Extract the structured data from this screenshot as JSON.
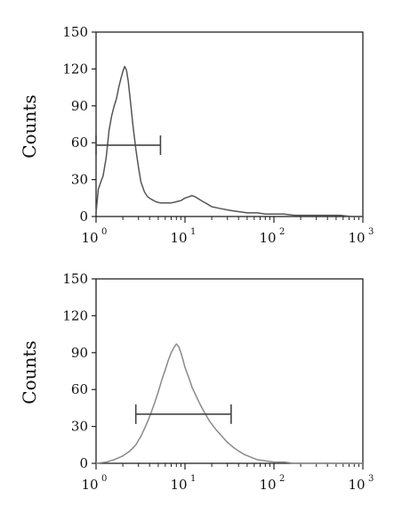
{
  "chart_data": [
    {
      "type": "line",
      "ylabel": "Counts",
      "xscale": "log",
      "xlim": [
        1,
        1000
      ],
      "ylim": [
        0,
        150
      ],
      "y_ticks": [
        "0",
        "30",
        "60",
        "90",
        "120",
        "150"
      ],
      "x_ticks": [
        {
          "base": "10",
          "exp": "0"
        },
        {
          "base": "10",
          "exp": "1"
        },
        {
          "base": "10",
          "exp": "2"
        },
        {
          "base": "10",
          "exp": "3"
        }
      ],
      "line_color": "#555555",
      "series": [
        {
          "x": [
            1.0,
            1.06,
            1.13,
            1.2,
            1.3,
            1.4,
            1.5,
            1.6,
            1.7,
            1.8,
            1.9,
            2.0,
            2.1,
            2.2,
            2.3,
            2.45,
            2.6,
            2.8,
            3.0,
            3.2,
            3.5,
            3.8,
            4.2,
            4.7,
            5.3,
            6.0,
            7.0,
            8.0,
            9.0,
            10.0,
            11.0,
            12.0,
            13.0,
            14.5,
            16.0,
            18.0,
            20.0,
            23.0,
            27.0,
            32.0,
            40.0,
            50.0,
            65.0,
            80.0,
            100.0,
            130.0,
            170.0,
            220.0,
            300.0,
            400.0,
            550.0,
            750.0,
            1000.0
          ],
          "y": [
            3,
            22,
            28,
            33,
            48,
            70,
            82,
            90,
            96,
            105,
            112,
            118,
            122,
            119,
            110,
            92,
            74,
            55,
            40,
            28,
            20,
            16,
            14,
            12,
            11,
            11,
            11,
            12,
            13,
            15,
            16,
            17,
            16,
            14,
            12,
            10,
            8,
            7,
            6,
            5,
            4,
            3,
            3,
            2,
            2,
            2,
            1,
            1,
            1,
            1,
            1,
            0,
            0
          ]
        }
      ],
      "gate": {
        "x": [
          1.0,
          5.3
        ],
        "y": 58
      }
    },
    {
      "type": "line",
      "ylabel": "Counts",
      "xscale": "log",
      "xlim": [
        1,
        1000
      ],
      "ylim": [
        0,
        150
      ],
      "y_ticks": [
        "0",
        "30",
        "60",
        "90",
        "120",
        "150"
      ],
      "x_ticks": [
        {
          "base": "10",
          "exp": "0"
        },
        {
          "base": "10",
          "exp": "1"
        },
        {
          "base": "10",
          "exp": "2"
        },
        {
          "base": "10",
          "exp": "3"
        }
      ],
      "line_color": "#8a8a8a",
      "series": [
        {
          "x": [
            1.0,
            1.3,
            1.6,
            2.0,
            2.4,
            2.8,
            3.2,
            3.6,
            4.0,
            4.5,
            5.0,
            5.5,
            6.0,
            6.5,
            7.0,
            7.5,
            8.0,
            8.5,
            9.0,
            9.5,
            10.0,
            11.0,
            12.0,
            13.5,
            15.0,
            17.0,
            19.0,
            22.0,
            26.0,
            30.0,
            35.0,
            40.0,
            47.0,
            55.0,
            65.0,
            80.0,
            100.0,
            130.0,
            170.0,
            250.0,
            400.0,
            1000.0
          ],
          "y": [
            0,
            1,
            3,
            6,
            10,
            15,
            22,
            30,
            38,
            48,
            58,
            68,
            76,
            84,
            90,
            94,
            97,
            95,
            90,
            84,
            78,
            70,
            62,
            54,
            47,
            40,
            34,
            28,
            22,
            17,
            13,
            10,
            7,
            5,
            3,
            2,
            1,
            1,
            0,
            0,
            0,
            0
          ]
        }
      ],
      "gate": {
        "x": [
          2.8,
          33.0
        ],
        "y": 40
      }
    }
  ]
}
